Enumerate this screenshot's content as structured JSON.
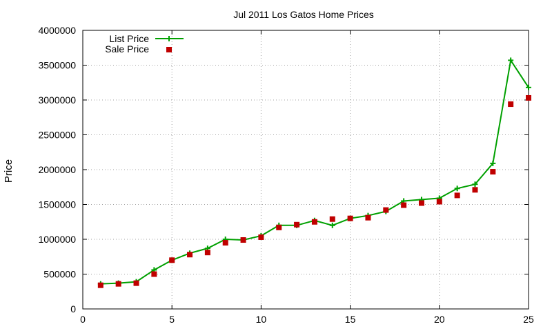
{
  "chart_data": {
    "type": "line",
    "title": "Jul 2011 Los Gatos Home Prices",
    "xlabel": "",
    "ylabel": "Price",
    "xlim": [
      0,
      25
    ],
    "ylim": [
      0,
      4000000
    ],
    "x_ticks": [
      0,
      5,
      10,
      15,
      20,
      25
    ],
    "y_ticks": [
      0,
      500000,
      1000000,
      1500000,
      2000000,
      2500000,
      3000000,
      3500000,
      4000000
    ],
    "grid": true,
    "legend_position": "top-left",
    "series": [
      {
        "name": "List Price",
        "style": "line-with-plus-markers",
        "color": "#00a000",
        "x": [
          1,
          2,
          3,
          4,
          5,
          6,
          7,
          8,
          9,
          10,
          11,
          12,
          13,
          14,
          15,
          16,
          17,
          18,
          19,
          20,
          21,
          22,
          23,
          24,
          25
        ],
        "values": [
          360000,
          370000,
          390000,
          560000,
          700000,
          800000,
          870000,
          1000000,
          990000,
          1050000,
          1200000,
          1200000,
          1270000,
          1200000,
          1300000,
          1340000,
          1400000,
          1550000,
          1570000,
          1590000,
          1730000,
          1790000,
          2090000,
          3570000,
          3180000
        ]
      },
      {
        "name": "Sale Price",
        "style": "square-markers",
        "color": "#c00000",
        "x": [
          1,
          2,
          3,
          4,
          5,
          6,
          7,
          8,
          9,
          10,
          11,
          12,
          13,
          14,
          15,
          16,
          17,
          18,
          19,
          20,
          21,
          22,
          23,
          24,
          25
        ],
        "values": [
          340000,
          360000,
          370000,
          500000,
          700000,
          780000,
          810000,
          950000,
          990000,
          1030000,
          1170000,
          1210000,
          1250000,
          1290000,
          1300000,
          1310000,
          1420000,
          1490000,
          1520000,
          1540000,
          1630000,
          1710000,
          1970000,
          2940000,
          3030000
        ]
      }
    ]
  }
}
